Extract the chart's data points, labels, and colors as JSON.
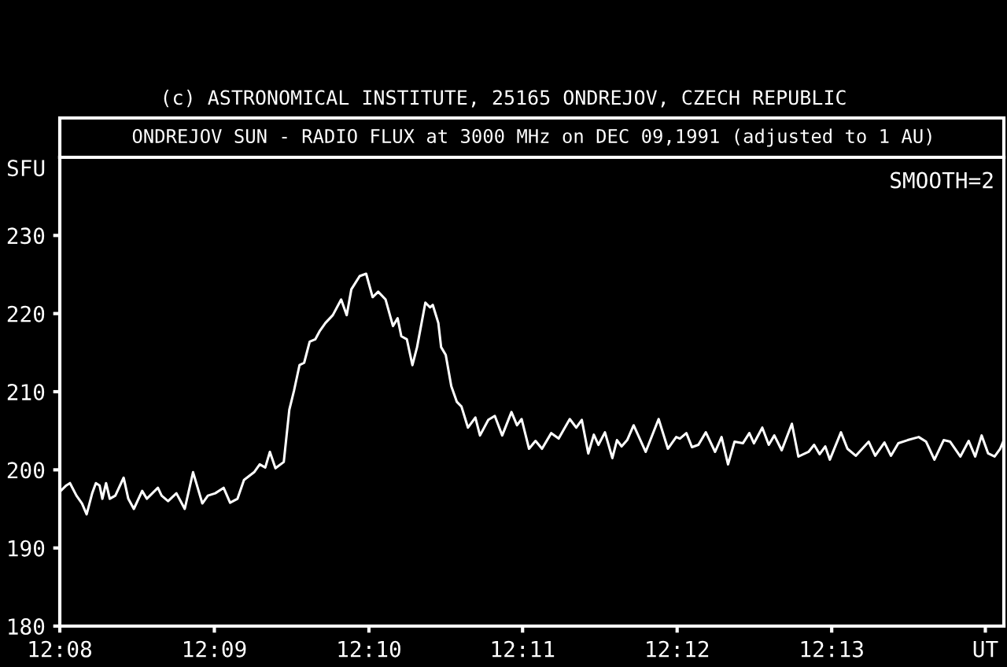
{
  "chart_data": {
    "type": "line",
    "title": "(c) ASTRONOMICAL INSTITUTE, 25165 ONDREJOV, CZECH REPUBLIC",
    "subtitle": "ONDREJOV SUN - RADIO FLUX at 3000 MHz on DEC 09,1991 (adjusted to 1 AU)",
    "ylabel": "SFU",
    "annotations": [
      "SMOOTH=2"
    ],
    "xlim": [
      12.1333,
      12.2353
    ],
    "xticks": [
      {
        "value": 12.1333,
        "label": "12:08"
      },
      {
        "value": 12.15,
        "label": "12:09"
      },
      {
        "value": 12.1667,
        "label": "12:10"
      },
      {
        "value": 12.1833,
        "label": "12:11"
      },
      {
        "value": 12.2,
        "label": "12:12"
      },
      {
        "value": 12.2167,
        "label": "12:13"
      },
      {
        "value": 12.2333,
        "label": "UT"
      }
    ],
    "ylim": [
      180,
      240
    ],
    "yticks": [
      180,
      190,
      200,
      210,
      220,
      230
    ],
    "grid": false,
    "legend": false,
    "marker": "none",
    "line_style": "solid",
    "series": [
      {
        "color": "#ffffff",
        "x": [
          12.1334,
          12.134,
          12.1344,
          12.1351,
          12.1357,
          12.1362,
          12.1368,
          12.1372,
          12.1376,
          12.1379,
          12.1383,
          12.1387,
          12.1393,
          12.1402,
          12.1407,
          12.1413,
          12.1422,
          12.1427,
          12.1433,
          12.1439,
          12.1443,
          12.145,
          12.1459,
          12.1468,
          12.1477,
          12.1487,
          12.1493,
          12.1501,
          12.151,
          12.1517,
          12.1525,
          12.1532,
          12.1543,
          12.1549,
          12.1555,
          12.156,
          12.1566,
          12.1575,
          12.1581,
          12.1586,
          12.1592,
          12.1597,
          12.1603,
          12.1609,
          12.1614,
          12.162,
          12.1628,
          12.1637,
          12.1643,
          12.1648,
          12.1657,
          12.1664,
          12.1671,
          12.1677,
          12.1685,
          12.1693,
          12.1698,
          12.1702,
          12.1708,
          12.1714,
          12.1719,
          12.1728,
          12.1733,
          12.1736,
          12.1742,
          12.1745,
          12.175,
          12.1756,
          12.1762,
          12.1767,
          12.1774,
          12.1782,
          12.1787,
          12.1796,
          12.1803,
          12.1811,
          12.1821,
          12.1827,
          12.1832,
          12.184,
          12.1847,
          12.1854,
          12.1864,
          12.1872,
          12.1884,
          12.1891,
          12.1897,
          12.1904,
          12.191,
          12.1915,
          12.1922,
          12.193,
          12.1935,
          12.194,
          12.1946,
          12.1953,
          12.1966,
          12.198,
          12.199,
          12.1999,
          12.2003,
          12.201,
          12.2016,
          12.2023,
          12.2031,
          12.2041,
          12.2048,
          12.2055,
          12.2062,
          12.2071,
          12.2078,
          12.2083,
          12.2092,
          12.2099,
          12.2105,
          12.2113,
          12.2124,
          12.2131,
          12.2142,
          12.2148,
          12.2154,
          12.216,
          12.2165,
          12.2177,
          12.2184,
          12.2193,
          12.2207,
          12.2214,
          12.2224,
          12.2231,
          12.2239,
          12.2249,
          12.2261,
          12.2269,
          12.2278,
          12.2288,
          12.2295,
          12.2306,
          12.2315,
          12.2322,
          12.2329,
          12.2336,
          12.2343,
          12.2349,
          12.2353
        ],
        "values": [
          197.3,
          198.0,
          198.3,
          196.7,
          195.7,
          194.3,
          197.0,
          198.3,
          198.0,
          196.3,
          198.3,
          196.3,
          196.7,
          199.0,
          196.3,
          195.0,
          197.3,
          196.3,
          197.0,
          197.7,
          196.7,
          196.0,
          197.0,
          195.0,
          199.7,
          195.7,
          196.7,
          197.0,
          197.7,
          195.8,
          196.3,
          198.7,
          199.7,
          200.7,
          200.3,
          202.3,
          200.2,
          201.0,
          207.7,
          210.1,
          213.4,
          213.7,
          216.4,
          216.7,
          217.8,
          218.8,
          219.8,
          221.8,
          219.8,
          223.1,
          224.8,
          225.1,
          222.1,
          222.8,
          221.8,
          218.4,
          219.4,
          217.1,
          216.7,
          213.4,
          215.7,
          221.4,
          220.8,
          221.1,
          218.8,
          215.7,
          214.7,
          210.7,
          208.7,
          208.1,
          205.4,
          206.7,
          204.4,
          206.4,
          206.9,
          204.4,
          207.4,
          205.7,
          206.5,
          202.7,
          203.7,
          202.7,
          204.7,
          204.0,
          206.5,
          205.4,
          206.4,
          202.1,
          204.5,
          203.2,
          204.8,
          201.5,
          203.8,
          203.0,
          203.8,
          205.7,
          202.3,
          206.5,
          202.7,
          204.2,
          204.0,
          204.7,
          202.9,
          203.2,
          204.8,
          202.3,
          204.2,
          200.7,
          203.6,
          203.4,
          204.7,
          203.4,
          205.4,
          203.2,
          204.4,
          202.5,
          205.9,
          201.7,
          202.3,
          203.2,
          202.0,
          203.0,
          201.3,
          204.8,
          202.7,
          201.8,
          203.6,
          201.8,
          203.5,
          201.8,
          203.4,
          203.8,
          204.2,
          203.6,
          201.3,
          203.8,
          203.6,
          201.7,
          203.7,
          201.7,
          204.4,
          202.1,
          201.7,
          202.7,
          203.8
        ]
      }
    ]
  }
}
